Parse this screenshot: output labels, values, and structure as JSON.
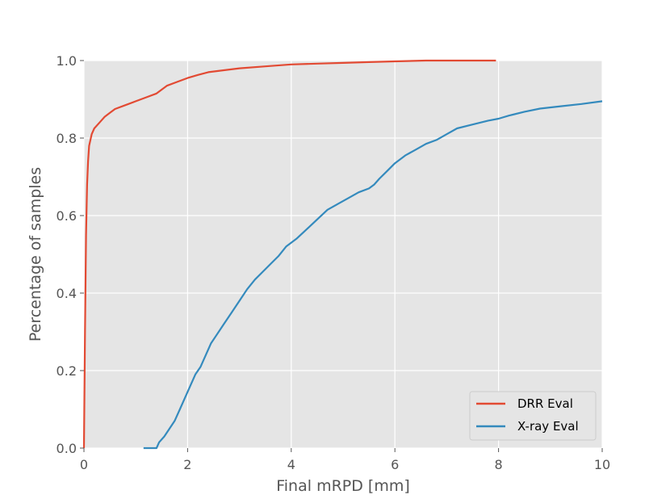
{
  "chart_data": {
    "type": "line",
    "title": "",
    "xlabel": "Final mRPD [mm]",
    "ylabel": "Percentage  of samples",
    "xlim": [
      0,
      10
    ],
    "ylim": [
      0,
      1.0
    ],
    "x_ticks": [
      "0",
      "2",
      "4",
      "6",
      "8",
      "10"
    ],
    "y_ticks": [
      "0.0",
      "0.2",
      "0.4",
      "0.6",
      "0.8",
      "1.0"
    ],
    "grid": true,
    "legend_position": "lower-right",
    "series": [
      {
        "name": "DRR Eval",
        "color": "#E24A33",
        "points": [
          [
            0.0,
            0.0
          ],
          [
            0.02,
            0.3
          ],
          [
            0.04,
            0.55
          ],
          [
            0.06,
            0.68
          ],
          [
            0.08,
            0.74
          ],
          [
            0.1,
            0.78
          ],
          [
            0.15,
            0.81
          ],
          [
            0.2,
            0.825
          ],
          [
            0.3,
            0.84
          ],
          [
            0.4,
            0.855
          ],
          [
            0.5,
            0.865
          ],
          [
            0.6,
            0.875
          ],
          [
            0.8,
            0.885
          ],
          [
            1.0,
            0.895
          ],
          [
            1.2,
            0.905
          ],
          [
            1.4,
            0.915
          ],
          [
            1.5,
            0.925
          ],
          [
            1.6,
            0.935
          ],
          [
            1.8,
            0.945
          ],
          [
            2.0,
            0.955
          ],
          [
            2.2,
            0.963
          ],
          [
            2.4,
            0.97
          ],
          [
            2.7,
            0.975
          ],
          [
            3.0,
            0.98
          ],
          [
            3.5,
            0.985
          ],
          [
            4.0,
            0.99
          ],
          [
            4.5,
            0.992
          ],
          [
            5.0,
            0.994
          ],
          [
            5.5,
            0.996
          ],
          [
            6.0,
            0.998
          ],
          [
            6.6,
            1.0
          ],
          [
            7.95,
            1.0
          ]
        ]
      },
      {
        "name": "X-ray Eval",
        "color": "#348ABD",
        "points": [
          [
            1.15,
            0.0
          ],
          [
            1.4,
            0.0
          ],
          [
            1.45,
            0.015
          ],
          [
            1.55,
            0.03
          ],
          [
            1.65,
            0.05
          ],
          [
            1.75,
            0.07
          ],
          [
            1.85,
            0.1
          ],
          [
            1.95,
            0.13
          ],
          [
            2.05,
            0.16
          ],
          [
            2.15,
            0.19
          ],
          [
            2.25,
            0.21
          ],
          [
            2.35,
            0.24
          ],
          [
            2.45,
            0.27
          ],
          [
            2.55,
            0.29
          ],
          [
            2.7,
            0.32
          ],
          [
            2.85,
            0.35
          ],
          [
            3.0,
            0.38
          ],
          [
            3.15,
            0.41
          ],
          [
            3.3,
            0.435
          ],
          [
            3.45,
            0.455
          ],
          [
            3.6,
            0.475
          ],
          [
            3.75,
            0.495
          ],
          [
            3.9,
            0.52
          ],
          [
            4.1,
            0.54
          ],
          [
            4.3,
            0.565
          ],
          [
            4.5,
            0.59
          ],
          [
            4.7,
            0.615
          ],
          [
            4.9,
            0.63
          ],
          [
            5.1,
            0.645
          ],
          [
            5.3,
            0.66
          ],
          [
            5.5,
            0.67
          ],
          [
            5.6,
            0.68
          ],
          [
            5.7,
            0.695
          ],
          [
            5.85,
            0.715
          ],
          [
            6.0,
            0.735
          ],
          [
            6.2,
            0.755
          ],
          [
            6.4,
            0.77
          ],
          [
            6.6,
            0.785
          ],
          [
            6.8,
            0.795
          ],
          [
            7.0,
            0.81
          ],
          [
            7.2,
            0.825
          ],
          [
            7.5,
            0.835
          ],
          [
            7.8,
            0.845
          ],
          [
            8.0,
            0.85
          ],
          [
            8.2,
            0.858
          ],
          [
            8.5,
            0.868
          ],
          [
            8.8,
            0.876
          ],
          [
            9.2,
            0.882
          ],
          [
            9.6,
            0.888
          ],
          [
            10.0,
            0.895
          ]
        ]
      }
    ]
  }
}
